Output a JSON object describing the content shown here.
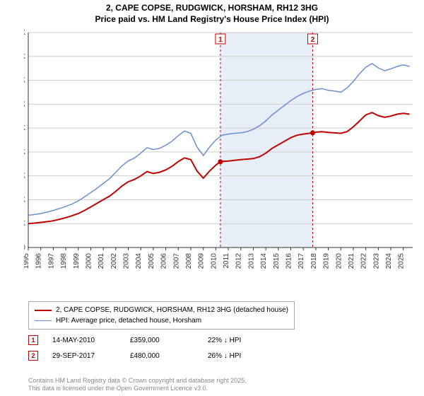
{
  "title_line1": "2, CAPE COPSE, RUDGWICK, HORSHAM, RH12 3HG",
  "title_line2": "Price paid vs. HM Land Registry's House Price Index (HPI)",
  "chart": {
    "type": "line",
    "background_color": "#ffffff",
    "grid_color": "#cccccc",
    "band_color": "#e8eef7",
    "ylabel_format": "£{v}K",
    "ylim": [
      0,
      900
    ],
    "ytick_step": 100,
    "xlim": [
      1995,
      2025.75
    ],
    "xtick_step": 1,
    "title_fontsize": 12,
    "label_fontsize": 10,
    "markers": [
      {
        "label": "1",
        "x": 2010.37,
        "price": 359,
        "color": "#c00000"
      },
      {
        "label": "2",
        "x": 2017.75,
        "price": 480,
        "color": "#c00000"
      }
    ],
    "series": [
      {
        "name": "price_paid",
        "color": "#c00000",
        "width": 2,
        "label": "2, CAPE COPSE, RUDGWICK, HORSHAM, RH12 3HG (detached house)",
        "data": [
          [
            1995,
            100
          ],
          [
            1995.5,
            102
          ],
          [
            1996,
            105
          ],
          [
            1996.5,
            108
          ],
          [
            1997,
            112
          ],
          [
            1997.5,
            118
          ],
          [
            1998,
            125
          ],
          [
            1998.5,
            133
          ],
          [
            1999,
            142
          ],
          [
            1999.5,
            155
          ],
          [
            2000,
            170
          ],
          [
            2000.5,
            185
          ],
          [
            2001,
            200
          ],
          [
            2001.5,
            215
          ],
          [
            2002,
            235
          ],
          [
            2002.5,
            258
          ],
          [
            2003,
            275
          ],
          [
            2003.5,
            285
          ],
          [
            2004,
            300
          ],
          [
            2004.5,
            318
          ],
          [
            2005,
            310
          ],
          [
            2005.5,
            315
          ],
          [
            2006,
            325
          ],
          [
            2006.5,
            340
          ],
          [
            2007,
            360
          ],
          [
            2007.5,
            375
          ],
          [
            2008,
            368
          ],
          [
            2008.5,
            320
          ],
          [
            2009,
            290
          ],
          [
            2009.5,
            320
          ],
          [
            2010,
            345
          ],
          [
            2010.37,
            359
          ],
          [
            2010.5,
            360
          ],
          [
            2011,
            362
          ],
          [
            2011.5,
            365
          ],
          [
            2012,
            368
          ],
          [
            2012.5,
            370
          ],
          [
            2013,
            372
          ],
          [
            2013.5,
            380
          ],
          [
            2014,
            395
          ],
          [
            2014.5,
            415
          ],
          [
            2015,
            430
          ],
          [
            2015.5,
            445
          ],
          [
            2016,
            460
          ],
          [
            2016.5,
            470
          ],
          [
            2017,
            475
          ],
          [
            2017.5,
            478
          ],
          [
            2017.75,
            480
          ],
          [
            2018,
            483
          ],
          [
            2018.5,
            485
          ],
          [
            2019,
            482
          ],
          [
            2019.5,
            480
          ],
          [
            2020,
            478
          ],
          [
            2020.5,
            485
          ],
          [
            2021,
            505
          ],
          [
            2021.5,
            530
          ],
          [
            2022,
            555
          ],
          [
            2022.5,
            565
          ],
          [
            2023,
            552
          ],
          [
            2023.5,
            545
          ],
          [
            2024,
            550
          ],
          [
            2024.5,
            558
          ],
          [
            2025,
            562
          ],
          [
            2025.5,
            558
          ]
        ]
      },
      {
        "name": "hpi",
        "color": "#6a8fd0",
        "width": 1.5,
        "label": "HPI: Average price, detached house, Horsham",
        "data": [
          [
            1995,
            135
          ],
          [
            1995.5,
            138
          ],
          [
            1996,
            142
          ],
          [
            1996.5,
            148
          ],
          [
            1997,
            155
          ],
          [
            1997.5,
            163
          ],
          [
            1998,
            172
          ],
          [
            1998.5,
            182
          ],
          [
            1999,
            195
          ],
          [
            1999.5,
            212
          ],
          [
            2000,
            230
          ],
          [
            2000.5,
            248
          ],
          [
            2001,
            268
          ],
          [
            2001.5,
            288
          ],
          [
            2002,
            315
          ],
          [
            2002.5,
            342
          ],
          [
            2003,
            362
          ],
          [
            2003.5,
            375
          ],
          [
            2004,
            395
          ],
          [
            2004.5,
            418
          ],
          [
            2005,
            410
          ],
          [
            2005.5,
            415
          ],
          [
            2006,
            428
          ],
          [
            2006.5,
            445
          ],
          [
            2007,
            468
          ],
          [
            2007.5,
            488
          ],
          [
            2008,
            478
          ],
          [
            2008.5,
            420
          ],
          [
            2009,
            385
          ],
          [
            2009.5,
            420
          ],
          [
            2010,
            450
          ],
          [
            2010.5,
            470
          ],
          [
            2011,
            475
          ],
          [
            2011.5,
            478
          ],
          [
            2012,
            480
          ],
          [
            2012.5,
            485
          ],
          [
            2013,
            495
          ],
          [
            2013.5,
            510
          ],
          [
            2014,
            530
          ],
          [
            2014.5,
            555
          ],
          [
            2015,
            575
          ],
          [
            2015.5,
            595
          ],
          [
            2016,
            615
          ],
          [
            2016.5,
            632
          ],
          [
            2017,
            645
          ],
          [
            2017.5,
            655
          ],
          [
            2018,
            662
          ],
          [
            2018.5,
            665
          ],
          [
            2019,
            658
          ],
          [
            2019.5,
            655
          ],
          [
            2020,
            650
          ],
          [
            2020.5,
            668
          ],
          [
            2021,
            695
          ],
          [
            2021.5,
            728
          ],
          [
            2022,
            755
          ],
          [
            2022.5,
            770
          ],
          [
            2023,
            752
          ],
          [
            2023.5,
            740
          ],
          [
            2024,
            748
          ],
          [
            2024.5,
            758
          ],
          [
            2025,
            765
          ],
          [
            2025.5,
            758
          ]
        ]
      }
    ]
  },
  "legend": {
    "items": [
      {
        "color": "#c00000",
        "width": 2,
        "label": "2, CAPE COPSE, RUDGWICK, HORSHAM, RH12 3HG (detached house)"
      },
      {
        "color": "#6a8fd0",
        "width": 1.5,
        "label": "HPI: Average price, detached house, Horsham"
      }
    ]
  },
  "sales": [
    {
      "num": "1",
      "date": "14-MAY-2010",
      "price": "£359,000",
      "hpi": "22% ↓ HPI",
      "color": "#c00000"
    },
    {
      "num": "2",
      "date": "29-SEP-2017",
      "price": "£480,000",
      "hpi": "26% ↓ HPI",
      "color": "#c00000"
    }
  ],
  "footer": {
    "line1": "Contains HM Land Registry data © Crown copyright and database right 2025.",
    "line2": "This data is licensed under the Open Government Licence v3.0."
  }
}
